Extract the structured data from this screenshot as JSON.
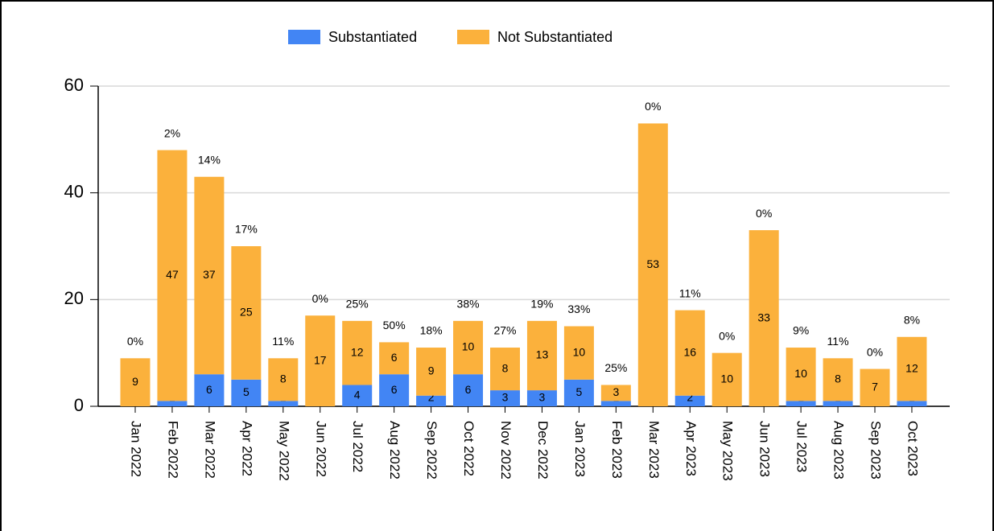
{
  "chart_data": {
    "type": "stacked_bar",
    "categories": [
      "Jan 2022",
      "Feb 2022",
      "Mar 2022",
      "Apr 2022",
      "May 2022",
      "Jun 2022",
      "Jul 2022",
      "Aug 2022",
      "Sep 2022",
      "Oct 2022",
      "Nov 2022",
      "Dec 2022",
      "Jan 2023",
      "Feb 2023",
      "Mar 2023",
      "Apr 2023",
      "May 2023",
      "Jun 2023",
      "Jul 2023",
      "Aug 2023",
      "Sep 2023",
      "Oct 2023"
    ],
    "series": [
      {
        "name": "Substantiated",
        "color": "#4285f4",
        "values": [
          0,
          1,
          6,
          5,
          1,
          0,
          4,
          6,
          2,
          6,
          3,
          3,
          5,
          1,
          0,
          2,
          0,
          0,
          1,
          1,
          0,
          1
        ]
      },
      {
        "name": "Not Substantiated",
        "color": "#fbb13c",
        "values": [
          9,
          47,
          37,
          25,
          8,
          17,
          12,
          6,
          9,
          10,
          8,
          13,
          10,
          3,
          53,
          16,
          10,
          33,
          10,
          8,
          7,
          12
        ]
      }
    ],
    "percent_labels": [
      "0%",
      "2%",
      "14%",
      "17%",
      "11%",
      "0%",
      "25%",
      "50%",
      "18%",
      "38%",
      "27%",
      "19%",
      "33%",
      "25%",
      "0%",
      "11%",
      "0%",
      "0%",
      "9%",
      "11%",
      "0%",
      "8%"
    ],
    "ylim": [
      0,
      60
    ],
    "yticks": [
      0,
      20,
      40,
      60
    ],
    "grid": true,
    "legend": "top"
  }
}
